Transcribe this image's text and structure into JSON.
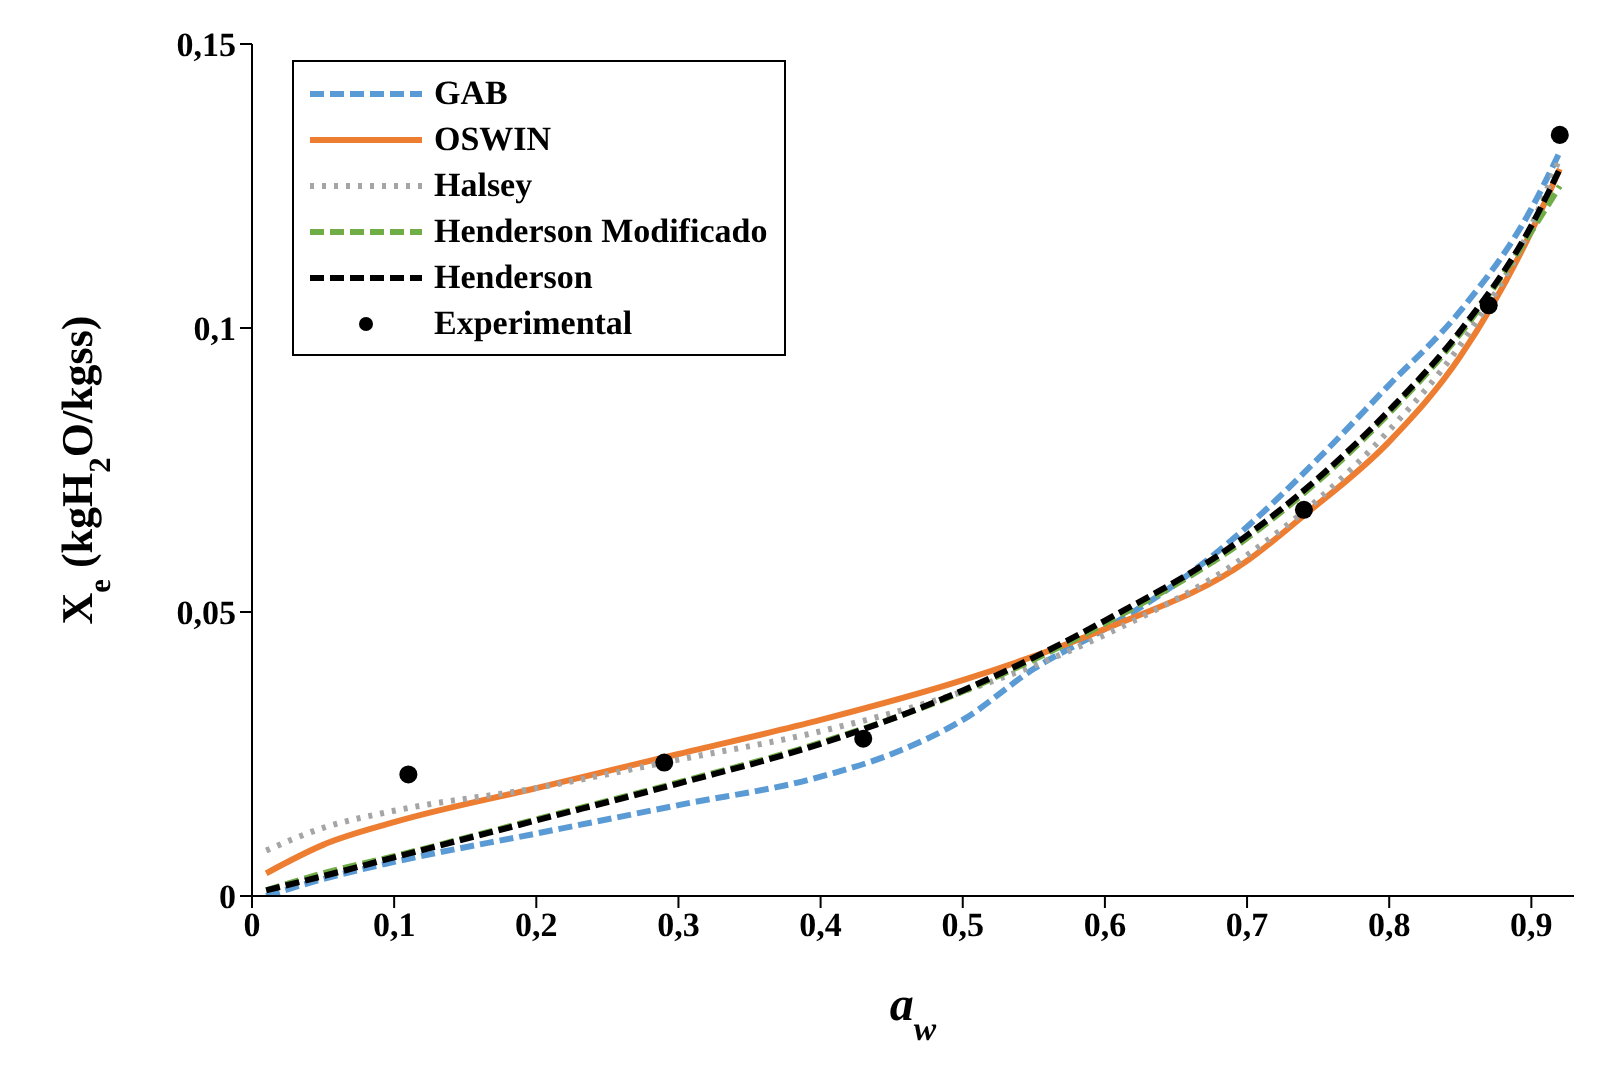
{
  "chart_data": {
    "type": "line",
    "xlabel": "a$_{w}$",
    "ylabel": "X$_{e}$ (kgH$_{2}$O/kgss)",
    "xlim": [
      0,
      0.93
    ],
    "ylim": [
      0,
      0.15
    ],
    "xticks": [
      {
        "value": 0,
        "label": "0"
      },
      {
        "value": 0.1,
        "label": "0,1"
      },
      {
        "value": 0.2,
        "label": "0,2"
      },
      {
        "value": 0.3,
        "label": "0,3"
      },
      {
        "value": 0.4,
        "label": "0,4"
      },
      {
        "value": 0.5,
        "label": "0,5"
      },
      {
        "value": 0.6,
        "label": "0,6"
      },
      {
        "value": 0.7,
        "label": "0,7"
      },
      {
        "value": 0.8,
        "label": "0,8"
      },
      {
        "value": 0.9,
        "label": "0,9"
      }
    ],
    "yticks": [
      {
        "value": 0,
        "label": "0"
      },
      {
        "value": 0.05,
        "label": "0,05"
      },
      {
        "value": 0.1,
        "label": "0,1"
      },
      {
        "value": 0.15,
        "label": "0,15"
      }
    ],
    "grid": false,
    "legend": "top left",
    "series": [
      {
        "name": "GAB",
        "type": "line",
        "color": "#5b9bd5",
        "line_style": "dashed",
        "x": [
          0.01,
          0.05,
          0.1,
          0.2,
          0.3,
          0.4,
          0.45,
          0.5,
          0.55,
          0.6,
          0.65,
          0.7,
          0.75,
          0.8,
          0.85,
          0.9,
          0.92
        ],
        "values": [
          0,
          0.003,
          0.006,
          0.011,
          0.016,
          0.021,
          0.025,
          0.031,
          0.04,
          0.047,
          0.055,
          0.065,
          0.077,
          0.09,
          0.103,
          0.121,
          0.131
        ]
      },
      {
        "name": "OSWIN",
        "type": "line",
        "color": "#ed7d31",
        "line_style": "solid",
        "x": [
          0.01,
          0.05,
          0.1,
          0.2,
          0.3,
          0.4,
          0.5,
          0.6,
          0.7,
          0.74,
          0.8,
          0.85,
          0.9,
          0.92
        ],
        "values": [
          0.004,
          0.009,
          0.013,
          0.019,
          0.025,
          0.031,
          0.038,
          0.047,
          0.059,
          0.067,
          0.08,
          0.095,
          0.117,
          0.128
        ]
      },
      {
        "name": "Halsey",
        "type": "line",
        "color": "#a5a5a5",
        "line_style": "dotted",
        "x": [
          0.01,
          0.05,
          0.1,
          0.2,
          0.3,
          0.4,
          0.5,
          0.6,
          0.7,
          0.8,
          0.85,
          0.9,
          0.92
        ],
        "values": [
          0.008,
          0.012,
          0.015,
          0.019,
          0.024,
          0.029,
          0.036,
          0.046,
          0.06,
          0.082,
          0.097,
          0.118,
          0.13
        ]
      },
      {
        "name": "Henderson Modificado",
        "type": "line",
        "color": "#70ad47",
        "line_style": "dashed",
        "x": [
          0.01,
          0.05,
          0.1,
          0.2,
          0.3,
          0.4,
          0.5,
          0.6,
          0.7,
          0.8,
          0.85,
          0.9,
          0.92
        ],
        "values": [
          0.001,
          0.004,
          0.007,
          0.0135,
          0.02,
          0.027,
          0.036,
          0.048,
          0.063,
          0.085,
          0.099,
          0.117,
          0.125
        ]
      },
      {
        "name": "Henderson",
        "type": "line",
        "color": "#000000",
        "line_style": "dashed",
        "x": [
          0.01,
          0.05,
          0.1,
          0.2,
          0.3,
          0.4,
          0.5,
          0.6,
          0.7,
          0.8,
          0.85,
          0.9,
          0.92
        ],
        "values": [
          0.001,
          0.0035,
          0.0068,
          0.0133,
          0.0198,
          0.0268,
          0.0362,
          0.0485,
          0.0635,
          0.0855,
          0.0995,
          0.118,
          0.128
        ]
      },
      {
        "name": "Experimental",
        "type": "scatter",
        "color": "#000000",
        "marker": "circle",
        "x": [
          0.11,
          0.29,
          0.43,
          0.74,
          0.87,
          0.92
        ],
        "values": [
          0.0214,
          0.0235,
          0.0277,
          0.068,
          0.104,
          0.134
        ]
      }
    ]
  }
}
